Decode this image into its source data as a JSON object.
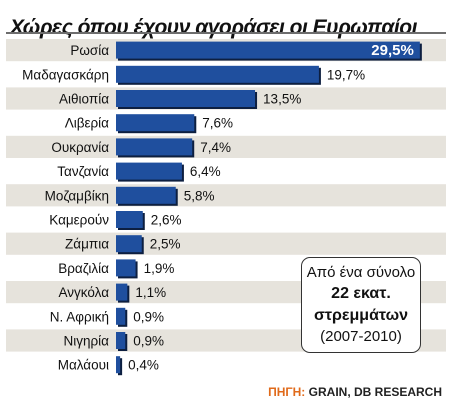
{
  "chart_data": {
    "type": "bar",
    "orientation": "horizontal",
    "title": "Χώρες όπου έχουν αγοράσει οι Ευρωπαίοι",
    "categories": [
      "Ρωσία",
      "Μαδαγασκάρη",
      "Αιθιοπία",
      "Λιβερία",
      "Ουκρανία",
      "Τανζανία",
      "Μοζαμβίκη",
      "Καμερούν",
      "Ζάμπια",
      "Βραζιλία",
      "Ανγκόλα",
      "Ν. Αφρική",
      "Νιγηρία",
      "Μαλάουι"
    ],
    "values": [
      29.5,
      19.7,
      13.5,
      7.6,
      7.4,
      6.4,
      5.8,
      2.6,
      2.5,
      1.9,
      1.1,
      0.9,
      0.9,
      0.4
    ],
    "value_labels": [
      "29,5%",
      "19,7%",
      "13,5%",
      "7,6%",
      "7,4%",
      "6,4%",
      "5,8%",
      "2,6%",
      "2,5%",
      "1,9%",
      "1,1%",
      "0,9%",
      "0,9%",
      "0,4%"
    ],
    "xlabel": "",
    "ylabel": "",
    "xlim": [
      0,
      30
    ],
    "grid": false,
    "legend": "none",
    "colors": {
      "bar": "#1f4f9e",
      "bar_shadow": "#0d1f40",
      "row_band": "#e6e3dc",
      "label_on_bar": "#ffffff",
      "label": "#111111"
    }
  },
  "note": {
    "line1": "Από ένα σύνολο",
    "line2": "22 εκατ.",
    "line3": "στρεμμάτων",
    "line4": "(2007-2010)"
  },
  "source": {
    "label": "ΠΗΓΗ:",
    "text": " GRAIN, DB RESEARCH"
  }
}
